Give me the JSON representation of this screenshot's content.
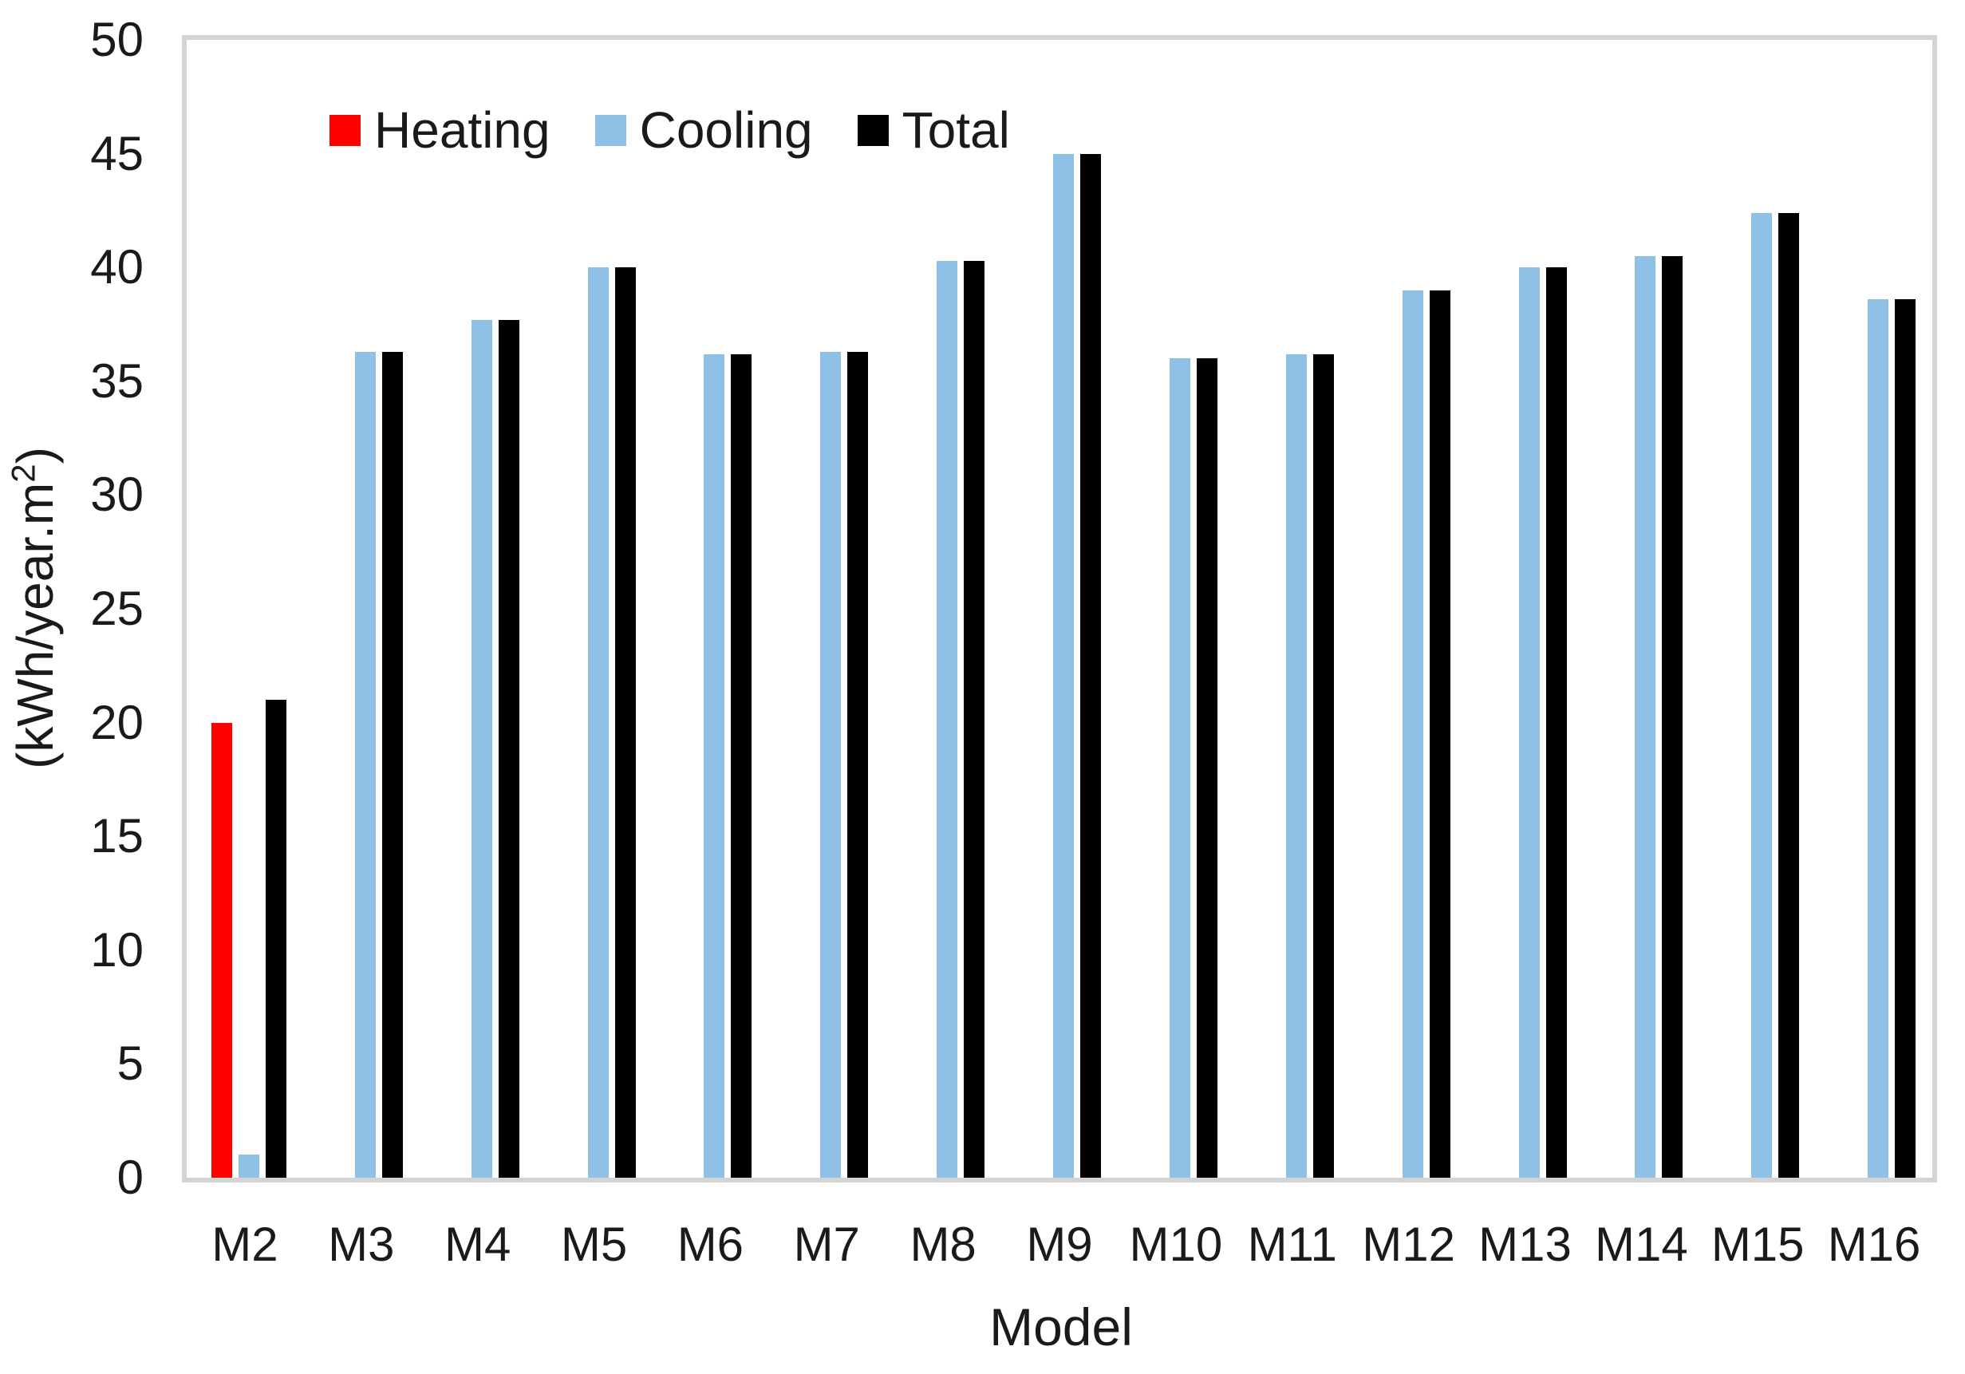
{
  "chart_data": {
    "type": "bar",
    "title": "",
    "categories": [
      "M2",
      "M3",
      "M4",
      "M5",
      "M6",
      "M7",
      "M8",
      "M9",
      "M10",
      "M11",
      "M12",
      "M13",
      "M14",
      "M15",
      "M16"
    ],
    "series": [
      {
        "name": "Heating",
        "color": "#FF0000",
        "values": [
          20,
          0,
          0,
          0,
          0,
          0,
          0,
          0,
          0,
          0,
          0,
          0,
          0,
          0,
          0
        ]
      },
      {
        "name": "Cooling",
        "color": "#8EC1E5",
        "values": [
          1,
          36.3,
          37.7,
          40,
          36.2,
          36.3,
          40.3,
          45,
          36,
          36.2,
          39,
          40,
          40.5,
          42.4,
          38.6
        ]
      },
      {
        "name": "Total",
        "color": "#000000",
        "values": [
          21,
          36.3,
          37.7,
          40,
          36.2,
          36.3,
          40.3,
          45,
          36,
          36.2,
          39,
          40,
          40.5,
          42.4,
          38.6
        ]
      }
    ],
    "xlabel": "Model",
    "ylabel": {
      "text": "(kWh/year.m",
      "sup": "2",
      "close": ")"
    },
    "ylim": [
      0,
      50
    ],
    "yticks": [
      0,
      5,
      10,
      15,
      20,
      25,
      30,
      35,
      40,
      45,
      50
    ],
    "grid": false,
    "legend_position": "inside-top-left",
    "colors": {
      "axis_line": "#D3D3D3",
      "text": "#1a1a1a",
      "background": "#FFFFFF"
    }
  }
}
